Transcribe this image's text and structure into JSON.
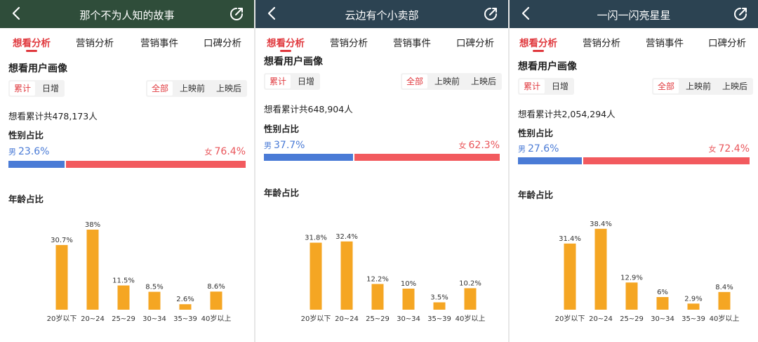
{
  "tabs": [
    "想看分析",
    "营销分析",
    "营销事件",
    "口碑分析"
  ],
  "section_title": "想看用户画像",
  "seg_mode": [
    "累计",
    "日增"
  ],
  "seg_time": [
    "全部",
    "上映前",
    "上映后"
  ],
  "gender_title": "性别占比",
  "male_label": "男",
  "female_label": "女",
  "age_title": "年龄占比",
  "age_categories": [
    "20岁以下",
    "20~24",
    "25~29",
    "30~34",
    "35~39",
    "40岁以上"
  ],
  "colors": {
    "accent": "#e0393e",
    "male": "#4a7bd6",
    "female": "#f25a5e",
    "bar": "#f5a623"
  },
  "panels": [
    {
      "title": "那个不为人知的故事",
      "total": "想看累计共478,173人",
      "male_pct": "23.6%",
      "female_pct": "76.4%",
      "male_frac": 0.236,
      "chart_data": {
        "type": "bar",
        "categories": [
          "20岁以下",
          "20~24",
          "25~29",
          "30~34",
          "35~39",
          "40岁以上"
        ],
        "values": [
          30.7,
          38,
          11.5,
          8.5,
          2.6,
          8.6
        ],
        "labels": [
          "30.7%",
          "38%",
          "11.5%",
          "8.5%",
          "2.6%",
          "8.6%"
        ]
      }
    },
    {
      "title": "云边有个小卖部",
      "total": "想看累计共648,904人",
      "male_pct": "37.7%",
      "female_pct": "62.3%",
      "male_frac": 0.377,
      "chart_data": {
        "type": "bar",
        "categories": [
          "20岁以下",
          "20~24",
          "25~29",
          "30~34",
          "35~39",
          "40岁以上"
        ],
        "values": [
          31.8,
          32.4,
          12.2,
          10,
          3.5,
          10.2
        ],
        "labels": [
          "31.8%",
          "32.4%",
          "12.2%",
          "10%",
          "3.5%",
          "10.2%"
        ]
      }
    },
    {
      "title": "一闪一闪亮星星",
      "total": "想看累计共2,054,294人",
      "male_pct": "27.6%",
      "female_pct": "72.4%",
      "male_frac": 0.276,
      "chart_data": {
        "type": "bar",
        "categories": [
          "20岁以下",
          "20~24",
          "25~29",
          "30~34",
          "35~39",
          "40岁以上"
        ],
        "values": [
          31.4,
          38.4,
          12.9,
          6,
          2.9,
          8.4
        ],
        "labels": [
          "31.4%",
          "38.4%",
          "12.9%",
          "6%",
          "2.9%",
          "8.4%"
        ]
      }
    }
  ]
}
